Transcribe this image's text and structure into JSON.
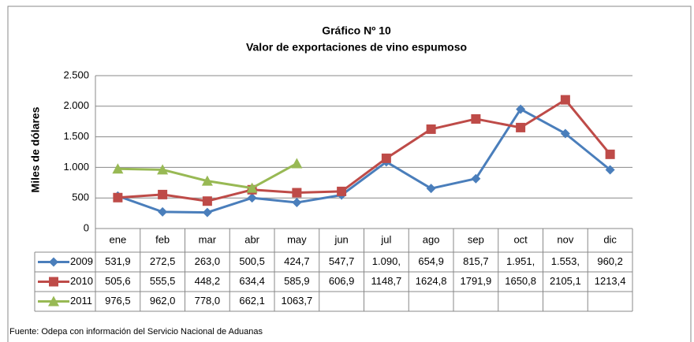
{
  "chart_data": {
    "type": "line",
    "title": "Gráfico Nº 10",
    "subtitle": "Valor de exportaciones de vino espumoso",
    "y_label": "Miles de dólares",
    "source": "Fuente: Odepa con información del Servicio Nacional de Aduanas",
    "categories": [
      "ene",
      "feb",
      "mar",
      "abr",
      "may",
      "jun",
      "jul",
      "ago",
      "sep",
      "oct",
      "nov",
      "dic"
    ],
    "ylim": [
      0,
      2500
    ],
    "yticks": [
      0,
      500,
      {
        "value": 1000,
        "label": "1.000"
      },
      {
        "value": 1500,
        "label": "1.500"
      },
      {
        "value": 2000,
        "label": "2.000"
      },
      {
        "value": 2500,
        "label": "2.500"
      }
    ],
    "grid": true,
    "series": [
      {
        "name": "2009",
        "color": "#4a7ebb",
        "marker": "diamond",
        "values": [
          531.9,
          272.5,
          263.0,
          500.5,
          424.7,
          547.7,
          1090,
          654.9,
          815.7,
          1951,
          1553,
          960.2
        ],
        "value_labels": [
          "531,9",
          "272,5",
          "263,0",
          "500,5",
          "424,7",
          "547,7",
          "1.090,",
          "654,9",
          "815,7",
          "1.951,",
          "1.553,",
          "960,2"
        ]
      },
      {
        "name": "2010",
        "color": "#be4b48",
        "marker": "square",
        "values": [
          505.6,
          555.5,
          448.2,
          634.4,
          585.9,
          606.9,
          1148.7,
          1624.8,
          1791.9,
          1650.8,
          2105.1,
          1213.4
        ],
        "value_labels": [
          "505,6",
          "555,5",
          "448,2",
          "634,4",
          "585,9",
          "606,9",
          "1148,7",
          "1624,8",
          "1791,9",
          "1650,8",
          "2105,1",
          "1213,4"
        ]
      },
      {
        "name": "2011",
        "color": "#98b954",
        "marker": "triangle",
        "values": [
          976.5,
          962.0,
          778.0,
          662.1,
          1063.7,
          null,
          null,
          null,
          null,
          null,
          null,
          null
        ],
        "value_labels": [
          "976,5",
          "962,0",
          "778,0",
          "662,1",
          "1063,7",
          null,
          null,
          null,
          null,
          null,
          null,
          null
        ]
      }
    ]
  }
}
